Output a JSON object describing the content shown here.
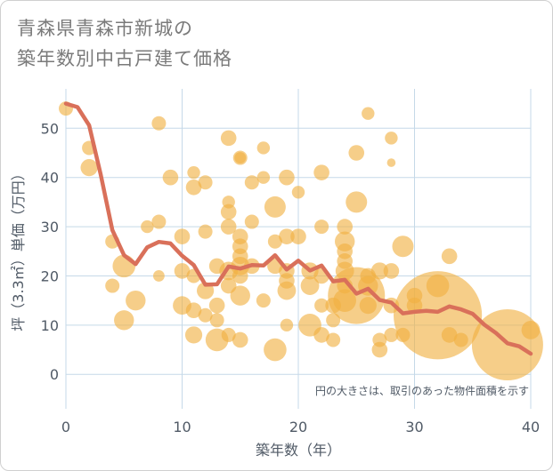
{
  "title_lines": [
    "青森県青森市新城の",
    "築年数別中古戸建て価格"
  ],
  "note": "円の大きさは、取引のあった物件面積を示す",
  "colors": {
    "bubble": "#f0b040",
    "line": "#d9705a",
    "grid": "#c5d9e8"
  },
  "chart_data": {
    "type": "scatter",
    "xlabel": "築年数（年）",
    "ylabel": "坪（3.3㎡）単価（万円）",
    "xlim": [
      0,
      40
    ],
    "ylim": [
      -7,
      58
    ],
    "x_ticks": [
      "0",
      "10",
      "20",
      "30",
      "40"
    ],
    "y_ticks": [
      "0",
      "10",
      "20",
      "30",
      "40",
      "50"
    ],
    "grid": true,
    "bubbles": [
      {
        "x": 0,
        "y": 54,
        "s": 1
      },
      {
        "x": 2,
        "y": 46,
        "s": 1
      },
      {
        "x": 2,
        "y": 42,
        "s": 1.2
      },
      {
        "x": 4,
        "y": 27,
        "s": 1
      },
      {
        "x": 4,
        "y": 18,
        "s": 1
      },
      {
        "x": 5,
        "y": 22,
        "s": 1.6
      },
      {
        "x": 5,
        "y": 11,
        "s": 1.4
      },
      {
        "x": 6,
        "y": 15,
        "s": 1.4
      },
      {
        "x": 7,
        "y": 30,
        "s": 0.9
      },
      {
        "x": 8,
        "y": 51,
        "s": 1
      },
      {
        "x": 8,
        "y": 31,
        "s": 1
      },
      {
        "x": 8,
        "y": 20,
        "s": 0.8
      },
      {
        "x": 9,
        "y": 40,
        "s": 1.1
      },
      {
        "x": 10,
        "y": 28,
        "s": 1.1
      },
      {
        "x": 10,
        "y": 21,
        "s": 1.1
      },
      {
        "x": 10,
        "y": 14,
        "s": 1.3
      },
      {
        "x": 11,
        "y": 41,
        "s": 0.9
      },
      {
        "x": 11,
        "y": 38,
        "s": 1.1
      },
      {
        "x": 11,
        "y": 20,
        "s": 1
      },
      {
        "x": 11,
        "y": 13,
        "s": 1.1
      },
      {
        "x": 11,
        "y": 8,
        "s": 1.2
      },
      {
        "x": 12,
        "y": 39,
        "s": 1
      },
      {
        "x": 12,
        "y": 29,
        "s": 1
      },
      {
        "x": 12,
        "y": 17,
        "s": 1.2
      },
      {
        "x": 12,
        "y": 12,
        "s": 1
      },
      {
        "x": 13,
        "y": 22,
        "s": 1.1
      },
      {
        "x": 13,
        "y": 14,
        "s": 1.1
      },
      {
        "x": 13,
        "y": 11,
        "s": 1
      },
      {
        "x": 13,
        "y": 7,
        "s": 1.6
      },
      {
        "x": 14,
        "y": 48,
        "s": 1.1
      },
      {
        "x": 14,
        "y": 35,
        "s": 0.9
      },
      {
        "x": 14,
        "y": 33,
        "s": 1.1
      },
      {
        "x": 14,
        "y": 30,
        "s": 1.1
      },
      {
        "x": 14,
        "y": 21,
        "s": 1.3
      },
      {
        "x": 14,
        "y": 18,
        "s": 1.1
      },
      {
        "x": 14,
        "y": 8,
        "s": 1
      },
      {
        "x": 15,
        "y": 44,
        "s": 1
      },
      {
        "x": 15,
        "y": 44,
        "s": 0.8
      },
      {
        "x": 15,
        "y": 28,
        "s": 1.1
      },
      {
        "x": 15,
        "y": 26,
        "s": 1.1
      },
      {
        "x": 15,
        "y": 24,
        "s": 1.1
      },
      {
        "x": 15,
        "y": 22,
        "s": 1.3
      },
      {
        "x": 15,
        "y": 20,
        "s": 1.1
      },
      {
        "x": 15,
        "y": 16,
        "s": 1.4
      },
      {
        "x": 15,
        "y": 7,
        "s": 1.1
      },
      {
        "x": 16,
        "y": 39,
        "s": 1
      },
      {
        "x": 16,
        "y": 31,
        "s": 1
      },
      {
        "x": 16,
        "y": 22,
        "s": 1.1
      },
      {
        "x": 17,
        "y": 46,
        "s": 0.9
      },
      {
        "x": 17,
        "y": 40,
        "s": 0.9
      },
      {
        "x": 17,
        "y": 15,
        "s": 1
      },
      {
        "x": 18,
        "y": 34,
        "s": 1.5
      },
      {
        "x": 18,
        "y": 27,
        "s": 1
      },
      {
        "x": 18,
        "y": 22,
        "s": 1.1
      },
      {
        "x": 18,
        "y": 5,
        "s": 1.6
      },
      {
        "x": 19,
        "y": 40,
        "s": 1.1
      },
      {
        "x": 19,
        "y": 28,
        "s": 1.1
      },
      {
        "x": 19,
        "y": 21,
        "s": 1.1
      },
      {
        "x": 19,
        "y": 19,
        "s": 1.1
      },
      {
        "x": 19,
        "y": 17,
        "s": 1.3
      },
      {
        "x": 19,
        "y": 10,
        "s": 0.9
      },
      {
        "x": 20,
        "y": 37,
        "s": 0.9
      },
      {
        "x": 20,
        "y": 28,
        "s": 1.1
      },
      {
        "x": 21,
        "y": 21,
        "s": 1.2
      },
      {
        "x": 21,
        "y": 18,
        "s": 1.3
      },
      {
        "x": 21,
        "y": 10,
        "s": 1.6
      },
      {
        "x": 22,
        "y": 41,
        "s": 1.1
      },
      {
        "x": 22,
        "y": 30,
        "s": 1
      },
      {
        "x": 22,
        "y": 20,
        "s": 1.1
      },
      {
        "x": 22,
        "y": 14,
        "s": 1
      },
      {
        "x": 22,
        "y": 8,
        "s": 1.1
      },
      {
        "x": 23,
        "y": 14,
        "s": 1.1
      },
      {
        "x": 23,
        "y": 11,
        "s": 1
      },
      {
        "x": 23,
        "y": 7,
        "s": 1
      },
      {
        "x": 24,
        "y": 30,
        "s": 1.1
      },
      {
        "x": 24,
        "y": 27,
        "s": 1.4
      },
      {
        "x": 24,
        "y": 25,
        "s": 1.1
      },
      {
        "x": 24,
        "y": 23,
        "s": 1.1
      },
      {
        "x": 24,
        "y": 21,
        "s": 1.3
      },
      {
        "x": 24,
        "y": 18,
        "s": 1.1
      },
      {
        "x": 24,
        "y": 15,
        "s": 1.6
      },
      {
        "x": 25,
        "y": 45,
        "s": 1.1
      },
      {
        "x": 25,
        "y": 35,
        "s": 1.5
      },
      {
        "x": 25,
        "y": 16,
        "s": 4
      },
      {
        "x": 26,
        "y": 53,
        "s": 0.9
      },
      {
        "x": 26,
        "y": 20,
        "s": 1.1
      },
      {
        "x": 26,
        "y": 18,
        "s": 1.4
      },
      {
        "x": 26,
        "y": 14,
        "s": 1.2
      },
      {
        "x": 27,
        "y": 21,
        "s": 1.2
      },
      {
        "x": 27,
        "y": 7,
        "s": 1
      },
      {
        "x": 27,
        "y": 5,
        "s": 1.1
      },
      {
        "x": 28,
        "y": 48,
        "s": 0.9
      },
      {
        "x": 28,
        "y": 43,
        "s": 0.6
      },
      {
        "x": 28,
        "y": 21,
        "s": 1.1
      },
      {
        "x": 28,
        "y": 14,
        "s": 1.1
      },
      {
        "x": 28,
        "y": 8,
        "s": 1
      },
      {
        "x": 29,
        "y": 26,
        "s": 1.5
      },
      {
        "x": 29,
        "y": 8,
        "s": 1
      },
      {
        "x": 30,
        "y": 16,
        "s": 1.1
      },
      {
        "x": 30,
        "y": 14,
        "s": 1.1
      },
      {
        "x": 32,
        "y": 12,
        "s": 6.2
      },
      {
        "x": 32,
        "y": 18,
        "s": 1.6
      },
      {
        "x": 33,
        "y": 24,
        "s": 1.1
      },
      {
        "x": 33,
        "y": 8,
        "s": 1.1
      },
      {
        "x": 34,
        "y": 7,
        "s": 1
      },
      {
        "x": 38,
        "y": 6,
        "s": 5
      },
      {
        "x": 40,
        "y": 9,
        "s": 1.3
      }
    ],
    "trend": [
      [
        0,
        55
      ],
      [
        1,
        54.3
      ],
      [
        2,
        50.6
      ],
      [
        3,
        40.5
      ],
      [
        4,
        29.3
      ],
      [
        5,
        24.2
      ],
      [
        6,
        22.4
      ],
      [
        7,
        25.8
      ],
      [
        8,
        26.9
      ],
      [
        9,
        26.6
      ],
      [
        10,
        24.1
      ],
      [
        11,
        22.2
      ],
      [
        12,
        18.2
      ],
      [
        13,
        18.3
      ],
      [
        14,
        21.9
      ],
      [
        15,
        21.5
      ],
      [
        16,
        22.2
      ],
      [
        17,
        22.1
      ],
      [
        18,
        24.2
      ],
      [
        19,
        21.3
      ],
      [
        20,
        23.1
      ],
      [
        21,
        21.1
      ],
      [
        22,
        22.1
      ],
      [
        23,
        18.9
      ],
      [
        24,
        19.2
      ],
      [
        25,
        16.4
      ],
      [
        26,
        17.4
      ],
      [
        27,
        15.1
      ],
      [
        28,
        14.6
      ],
      [
        29,
        12.4
      ],
      [
        30,
        12.7
      ],
      [
        31,
        12.9
      ],
      [
        32,
        12.7
      ],
      [
        33,
        13.8
      ],
      [
        34,
        13.2
      ],
      [
        35,
        12.3
      ],
      [
        36,
        10.1
      ],
      [
        37,
        8.4
      ],
      [
        38,
        6.3
      ],
      [
        39,
        5.7
      ],
      [
        40,
        4.2
      ]
    ]
  }
}
